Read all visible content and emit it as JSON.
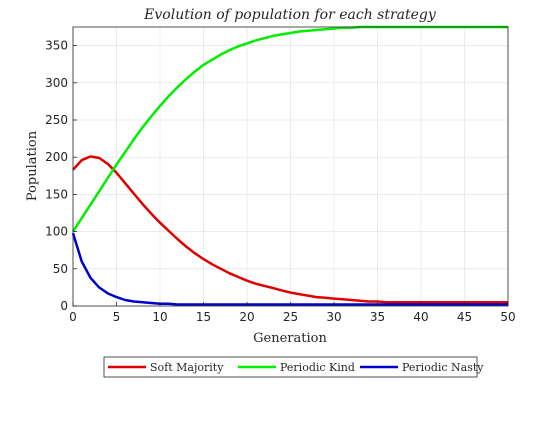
{
  "chart_data": {
    "type": "line",
    "title": "Evolution of population for each strategy",
    "xlabel": "Generation",
    "ylabel": "Population",
    "xlim": [
      0,
      50
    ],
    "ylim": [
      0,
      375
    ],
    "x_ticks": [
      0,
      5,
      10,
      15,
      20,
      25,
      30,
      35,
      40,
      45,
      50
    ],
    "y_ticks": [
      0,
      50,
      100,
      150,
      200,
      250,
      300,
      350
    ],
    "grid": true,
    "legend_position": "bottom",
    "x": [
      0,
      1,
      2,
      3,
      4,
      5,
      6,
      7,
      8,
      9,
      10,
      11,
      12,
      13,
      14,
      15,
      16,
      17,
      18,
      19,
      20,
      21,
      22,
      23,
      24,
      25,
      26,
      27,
      28,
      29,
      30,
      31,
      32,
      33,
      34,
      35,
      36,
      37,
      38,
      39,
      40,
      41,
      42,
      43,
      44,
      45,
      46,
      47,
      48,
      49,
      50
    ],
    "series": [
      {
        "name": "Soft Majority",
        "color": "#e00000",
        "values": [
          183,
          196,
          201,
          199,
          191,
          179,
          165,
          151,
          137,
          124,
          112,
          101,
          90,
          80,
          71,
          63,
          56,
          50,
          44,
          39,
          34,
          30,
          27,
          24,
          21,
          18,
          16,
          14,
          12,
          11,
          10,
          9,
          8,
          7,
          6,
          6,
          5,
          5,
          5,
          5,
          5,
          5,
          5,
          5,
          5,
          5,
          5,
          5,
          5,
          5,
          5
        ]
      },
      {
        "name": "Periodic Kind",
        "color": "#00ee00",
        "values": [
          100,
          118,
          136,
          154,
          172,
          190,
          207,
          224,
          240,
          255,
          269,
          282,
          294,
          305,
          315,
          324,
          331,
          338,
          344,
          349,
          353,
          357,
          360,
          363,
          365,
          367,
          369,
          370,
          371,
          372,
          373,
          374,
          374,
          375,
          375,
          375,
          375,
          375,
          375,
          375,
          375,
          375,
          375,
          375,
          375,
          375,
          375,
          375,
          375,
          375,
          375
        ]
      },
      {
        "name": "Periodic Nasty",
        "color": "#0000cc",
        "values": [
          98,
          60,
          38,
          25,
          17,
          12,
          8,
          6,
          5,
          4,
          3,
          3,
          2,
          2,
          2,
          2,
          2,
          2,
          2,
          2,
          2,
          2,
          2,
          2,
          2,
          2,
          2,
          2,
          2,
          2,
          2,
          2,
          2,
          2,
          2,
          2,
          2,
          2,
          2,
          2,
          2,
          2,
          2,
          2,
          2,
          2,
          2,
          2,
          2,
          2,
          2
        ]
      }
    ]
  }
}
